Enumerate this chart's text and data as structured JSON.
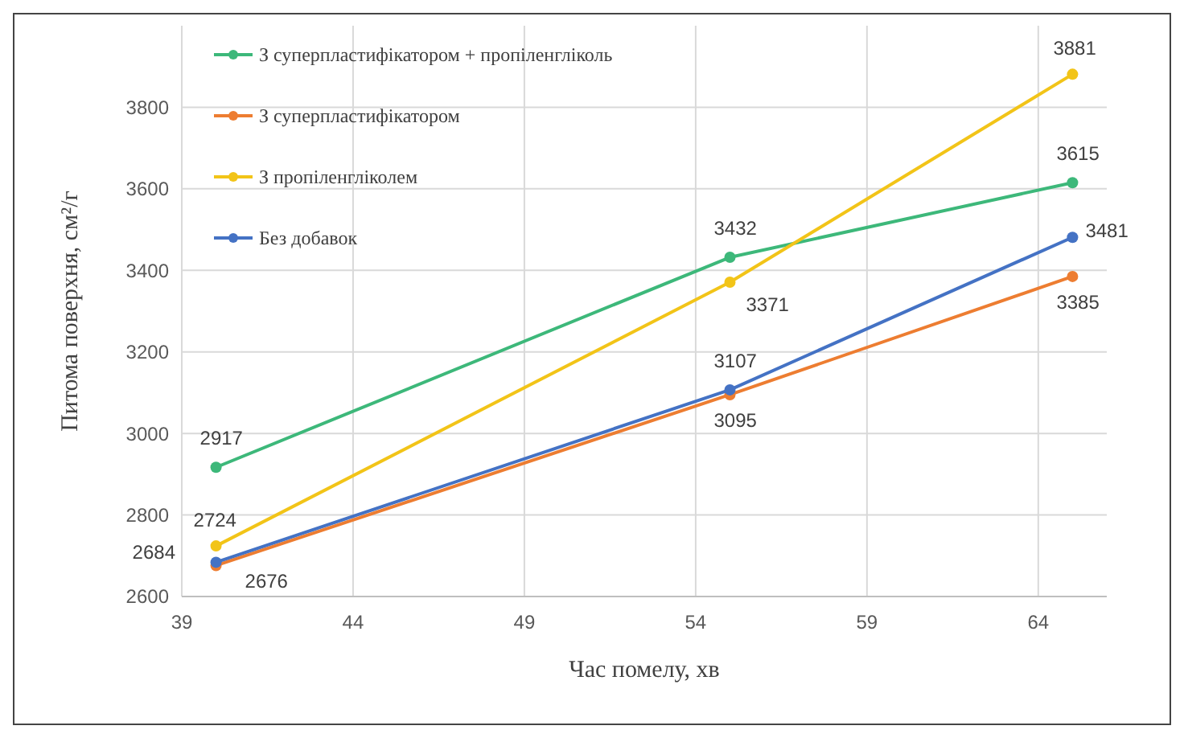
{
  "chart_data": {
    "type": "line",
    "xlabel": "Час помелу, хв",
    "ylabel": "Питома поверхня, см²/г",
    "x": [
      40,
      55,
      65
    ],
    "series": [
      {
        "name": "З суперпластифікатором + пропіленгліколь",
        "color": "#3db87a",
        "values": [
          2917,
          3432,
          3615
        ]
      },
      {
        "name": "З суперпластифікатором",
        "color": "#ed7d31",
        "values": [
          2676,
          3095,
          3385
        ]
      },
      {
        "name": "З пропіленгліколем",
        "color": "#f2c418",
        "values": [
          2724,
          3371,
          3881
        ]
      },
      {
        "name": "Без добавок",
        "color": "#4472c4",
        "values": [
          2684,
          3107,
          3481
        ]
      }
    ],
    "xlim": [
      39,
      66
    ],
    "xticks": [
      39,
      44,
      49,
      54,
      59,
      64
    ],
    "ylim": [
      2600,
      4000
    ],
    "yticks": [
      2600,
      2800,
      3000,
      3200,
      3400,
      3600,
      3800
    ],
    "grid": true,
    "legend": "top left",
    "marker": "circle",
    "line_style": "solid",
    "data_labels": true
  }
}
